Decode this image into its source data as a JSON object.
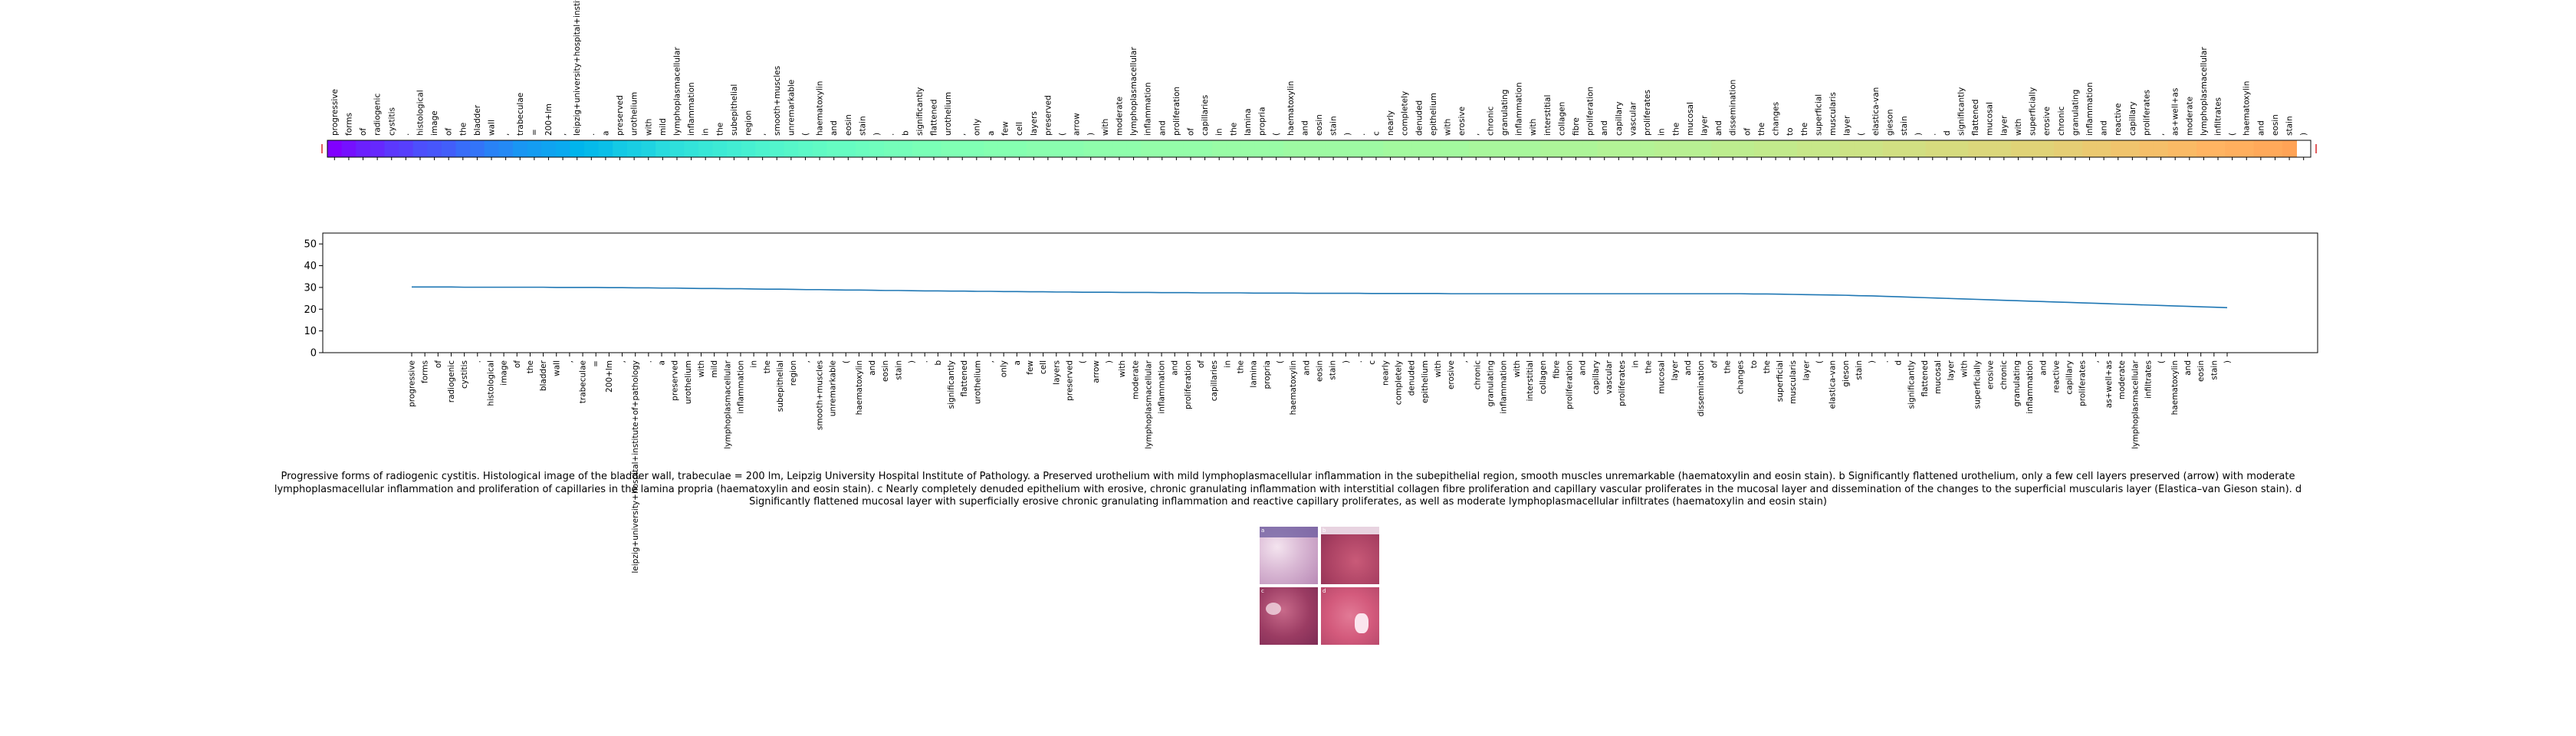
{
  "chart_data": [
    {
      "type": "heatmap",
      "title": "",
      "xlabel": "",
      "ylabel": "",
      "colormap": "rainbow",
      "tokens": [
        "progressive",
        "forms",
        "of",
        "radiogenic",
        "cystitis",
        ".",
        "histological",
        "image",
        "of",
        "the",
        "bladder",
        "wall",
        ",",
        "trabeculae",
        "=",
        "200+lm",
        ",",
        "leipzig+university+hospital+institute+of+pathology",
        ".",
        "a",
        "preserved",
        "urothelium",
        "with",
        "mild",
        "lymphoplasmacellular",
        "inflammation",
        "in",
        "the",
        "subepithelial",
        "region",
        ",",
        "smooth+muscles",
        "unremarkable",
        "(",
        "haematoxylin",
        "and",
        "eosin",
        "stain",
        ")",
        ".",
        "b",
        "significantly",
        "flattened",
        "urothelium",
        ",",
        "only",
        "a",
        "few",
        "cell",
        "layers",
        "preserved",
        "(",
        "arrow",
        ")",
        "with",
        "moderate",
        "lymphoplasmacellular",
        "inflammation",
        "and",
        "proliferation",
        "of",
        "capillaries",
        "in",
        "the",
        "lamina",
        "propria",
        "(",
        "haematoxylin",
        "and",
        "eosin",
        "stain",
        ")",
        ".",
        "c",
        "nearly",
        "completely",
        "denuded",
        "epithelium",
        "with",
        "erosive",
        ",",
        "chronic",
        "granulating",
        "inflammation",
        "with",
        "interstitial",
        "collagen",
        "fibre",
        "proliferation",
        "and",
        "capillary",
        "vascular",
        "proliferates",
        "in",
        "the",
        "mucosal",
        "layer",
        "and",
        "dissemination",
        "of",
        "the",
        "changes",
        "to",
        "the",
        "superficial",
        "muscularis",
        "layer",
        "(",
        "elastica-van",
        "gieson",
        "stain",
        ")",
        ".",
        "d",
        "significantly",
        "flattened",
        "mucosal",
        "layer",
        "with",
        "superficially",
        "erosive",
        "chronic",
        "granulating",
        "inflammation",
        "and",
        "reactive",
        "capillary",
        "proliferates",
        ",",
        "as+well+as",
        "moderate",
        "lymphoplasmacellular",
        "infiltrates",
        "(",
        "haematoxylin",
        "and",
        "eosin",
        "stain",
        ")"
      ],
      "values": [
        0.0,
        0.02,
        0.04,
        0.05,
        0.07,
        0.08,
        0.1,
        0.11,
        0.12,
        0.14,
        0.15,
        0.17,
        0.18,
        0.2,
        0.21,
        0.22,
        0.23,
        0.25,
        0.26,
        0.27,
        0.29,
        0.3,
        0.31,
        0.33,
        0.34,
        0.35,
        0.36,
        0.37,
        0.38,
        0.39,
        0.4,
        0.41,
        0.42,
        0.43,
        0.44,
        0.45,
        0.45,
        0.46,
        0.47,
        0.48,
        0.48,
        0.49,
        0.49,
        0.5,
        0.5,
        0.5,
        0.51,
        0.51,
        0.51,
        0.52,
        0.52,
        0.52,
        0.52,
        0.53,
        0.53,
        0.53,
        0.53,
        0.54,
        0.54,
        0.54,
        0.54,
        0.54,
        0.55,
        0.55,
        0.55,
        0.55,
        0.55,
        0.56,
        0.56,
        0.56,
        0.56,
        0.56,
        0.56,
        0.56,
        0.57,
        0.57,
        0.57,
        0.57,
        0.57,
        0.57,
        0.58,
        0.58,
        0.58,
        0.58,
        0.58,
        0.59,
        0.59,
        0.59,
        0.59,
        0.6,
        0.6,
        0.6,
        0.6,
        0.61,
        0.61,
        0.61,
        0.61,
        0.62,
        0.62,
        0.62,
        0.63,
        0.63,
        0.63,
        0.64,
        0.64,
        0.64,
        0.65,
        0.65,
        0.65,
        0.66,
        0.66,
        0.66,
        0.67,
        0.67,
        0.67,
        0.68,
        0.68,
        0.68,
        0.69,
        0.69,
        0.69,
        0.7,
        0.7,
        0.71,
        0.71,
        0.72,
        0.72,
        0.73,
        0.73,
        0.74,
        0.74,
        0.75,
        0.75,
        0.76,
        0.76,
        0.77,
        0.77,
        0.78
      ]
    },
    {
      "type": "line",
      "title": "",
      "xlabel": "",
      "ylabel": "",
      "ylim": [
        0,
        55
      ],
      "yticks": [
        0,
        10,
        20,
        30,
        40,
        50
      ],
      "grid": false,
      "series": [
        {
          "name": "",
          "color": "#1f77b4",
          "values": [
            30.2,
            30.2,
            30.2,
            30.2,
            30.1,
            30.1,
            30.1,
            30.1,
            30.1,
            30.1,
            30.1,
            30.0,
            30.0,
            30.0,
            30.0,
            29.9,
            29.9,
            29.8,
            29.8,
            29.7,
            29.7,
            29.6,
            29.5,
            29.5,
            29.4,
            29.4,
            29.3,
            29.2,
            29.2,
            29.1,
            29.0,
            29.0,
            28.9,
            28.8,
            28.8,
            28.7,
            28.6,
            28.6,
            28.5,
            28.4,
            28.4,
            28.3,
            28.3,
            28.2,
            28.2,
            28.1,
            28.1,
            28.0,
            28.0,
            27.9,
            27.9,
            27.8,
            27.8,
            27.8,
            27.7,
            27.7,
            27.7,
            27.6,
            27.6,
            27.6,
            27.5,
            27.5,
            27.5,
            27.5,
            27.4,
            27.4,
            27.4,
            27.4,
            27.3,
            27.3,
            27.3,
            27.3,
            27.3,
            27.2,
            27.2,
            27.2,
            27.2,
            27.2,
            27.2,
            27.1,
            27.1,
            27.1,
            27.1,
            27.1,
            27.1,
            27.1,
            27.1,
            27.1,
            27.1,
            27.1,
            27.1,
            27.1,
            27.1,
            27.1,
            27.1,
            27.1,
            27.1,
            27.1,
            27.1,
            27.1,
            27.1,
            27.1,
            27.0,
            27.0,
            26.9,
            26.8,
            26.7,
            26.6,
            26.5,
            26.4,
            26.2,
            26.1,
            25.9,
            25.7,
            25.5,
            25.3,
            25.1,
            24.9,
            24.7,
            24.5,
            24.3,
            24.1,
            23.9,
            23.7,
            23.5,
            23.3,
            23.1,
            22.9,
            22.7,
            22.5,
            22.3,
            22.1,
            21.9,
            21.7,
            21.5,
            21.3,
            21.1,
            20.9,
            20.7
          ]
        }
      ]
    }
  ],
  "caption": "Progressive forms of radiogenic cystitis. Histological image of the bladder wall, trabeculae = 200 lm, Leipzig University Hospital Institute of Pathology. a Preserved urothelium with mild lymphoplasmacellular inflammation in the subepithelial region, smooth muscles unremarkable (haematoxylin and eosin stain). b Significantly flattened urothelium, only a few cell layers preserved (arrow) with moderate lymphoplasmacellular inflammation and proliferation of capillaries in the lamina propria (haematoxylin and eosin stain). c Nearly completely denuded epithelium with erosive, chronic granulating inflammation with interstitial collagen fibre proliferation and capillary vascular proliferates in the mucosal layer and dissemination of the changes to the superficial muscularis layer (Elastica–van Gieson stain). d Significantly flattened mucosal layer with superficially erosive chronic granulating inflammation and reactive capillary proliferates, as well as moderate lymphoplasmacellular infiltrates (haematoxylin and eosin stain)",
  "image_panels": [
    "a",
    "b",
    "c",
    "d"
  ]
}
